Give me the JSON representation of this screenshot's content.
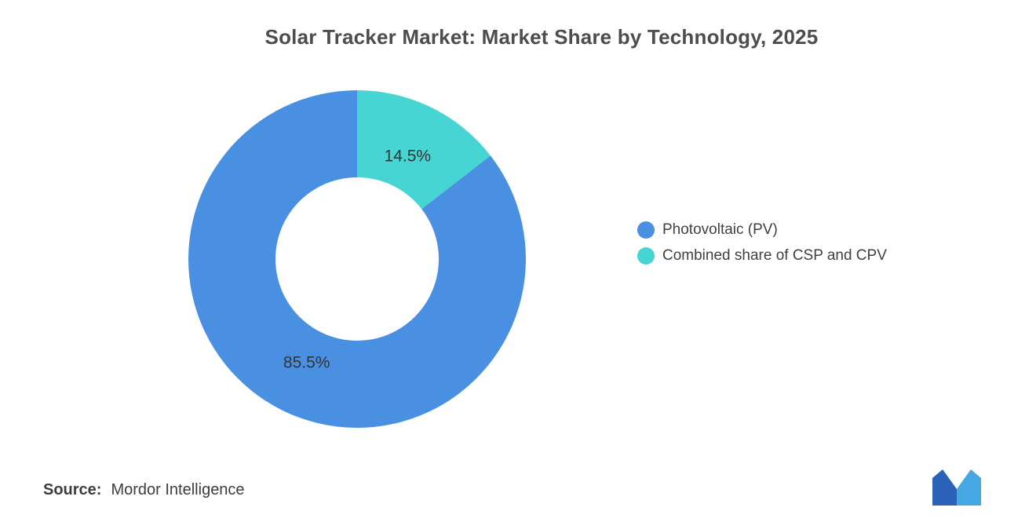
{
  "title": "Solar Tracker Market: Market Share by Technology, 2025",
  "chart_data": {
    "type": "pie",
    "subtype": "donut",
    "title": "Solar Tracker Market: Market Share by Technology, 2025",
    "categories": [
      "Photovoltaic (PV)",
      "Combined share of CSP and CPV"
    ],
    "values": [
      85.5,
      14.5
    ],
    "labels": [
      "85.5%",
      "14.5%"
    ],
    "colors": [
      "#4A90E2",
      "#46D5D2"
    ],
    "start_angle_deg": 52.2,
    "direction": "clockwise",
    "legend_position": "right"
  },
  "legend": {
    "items": [
      {
        "label": "Photovoltaic (PV)",
        "color": "#4A90E2"
      },
      {
        "label": "Combined share of CSP and CPV",
        "color": "#46D5D2"
      }
    ]
  },
  "footer": {
    "source_label": "Source:",
    "source_value": "Mordor Intelligence"
  },
  "logo": {
    "name": "mordor-intelligence-logo",
    "color_dark": "#2B62B8",
    "color_light": "#46A8E2"
  }
}
